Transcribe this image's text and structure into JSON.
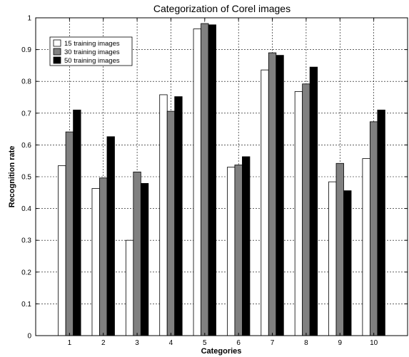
{
  "chart_data": {
    "type": "bar",
    "title": "Categorization of Corel images",
    "xlabel": "Categories",
    "ylabel": "Recognition rate",
    "ylim": [
      0,
      1
    ],
    "yticks": [
      0,
      0.1,
      0.2,
      0.3,
      0.4,
      0.5,
      0.6,
      0.7,
      0.8,
      0.9,
      1
    ],
    "categories": [
      "1",
      "2",
      "3",
      "4",
      "5",
      "6",
      "7",
      "8",
      "9",
      "10"
    ],
    "grid": true,
    "legend_position": "top-left",
    "series": [
      {
        "name": "15 training images",
        "color": "#ffffff",
        "values": [
          0.535,
          0.463,
          0.3,
          0.758,
          0.965,
          0.53,
          0.836,
          0.768,
          0.484,
          0.557
        ]
      },
      {
        "name": "30 training images",
        "color": "#808080",
        "values": [
          0.641,
          0.496,
          0.515,
          0.706,
          0.982,
          0.537,
          0.89,
          0.792,
          0.542,
          0.673
        ]
      },
      {
        "name": "50 training images",
        "color": "#000000",
        "values": [
          0.71,
          0.626,
          0.479,
          0.752,
          0.978,
          0.563,
          0.882,
          0.845,
          0.456,
          0.71
        ]
      }
    ]
  }
}
